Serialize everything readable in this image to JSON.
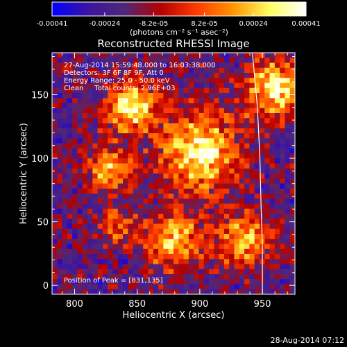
{
  "chart_data": {
    "type": "heatmap",
    "title": "Reconstructed RHESSI Image",
    "xlabel": "Heliocentric X (arcsec)",
    "ylabel": "Heliocentric Y (arcsec)",
    "xlim": [
      782,
      976
    ],
    "ylim": [
      -7,
      183
    ],
    "x_ticks": [
      "800",
      "850",
      "900",
      "950"
    ],
    "y_ticks": [
      "0",
      "50",
      "100",
      "150"
    ],
    "colorbar": {
      "ticks": [
        "-0.00041",
        "-0.00024",
        "-8.2e-05",
        "8.2e-05",
        "0.00024",
        "0.00041"
      ],
      "range": [
        -0.00041,
        0.00041
      ],
      "units_label": "(photons cm⁻² s⁻¹ asec⁻²)",
      "colormap": [
        "#0000ff",
        "#3c14a0",
        "#502878",
        "#b40000",
        "#ff3c00",
        "#ff9600",
        "#ffff60",
        "#ffffff"
      ]
    },
    "annotations": [
      "27-Aug-2014 15:59:48.000 to 16:03:38.000",
      "Detectors: 3F 6F 8F 9F, Att 0",
      "Energy Range: 25.0 - 50.0 keV",
      "Clean     Total counts: 2.96E+03"
    ],
    "peak_label": "Position of Peak = [831,135]",
    "limb": [
      [
        942,
        183
      ],
      [
        946,
        140
      ],
      [
        948,
        100
      ],
      [
        949,
        60
      ],
      [
        950,
        30
      ],
      [
        950,
        -7
      ]
    ],
    "sources": [
      {
        "x": 845,
        "y": 140,
        "amp": 1.0,
        "sigma": 14
      },
      {
        "x": 828,
        "y": 92,
        "amp": 0.8,
        "sigma": 12
      },
      {
        "x": 900,
        "y": 105,
        "amp": 1.0,
        "sigma": 22
      },
      {
        "x": 960,
        "y": 155,
        "amp": 1.0,
        "sigma": 16
      },
      {
        "x": 935,
        "y": 35,
        "amp": 0.85,
        "sigma": 14
      },
      {
        "x": 880,
        "y": 35,
        "amp": 0.8,
        "sigma": 16
      },
      {
        "x": 835,
        "y": 45,
        "amp": 0.55,
        "sigma": 10
      }
    ]
  },
  "footer_timestamp": "28-Aug-2014 07:12"
}
